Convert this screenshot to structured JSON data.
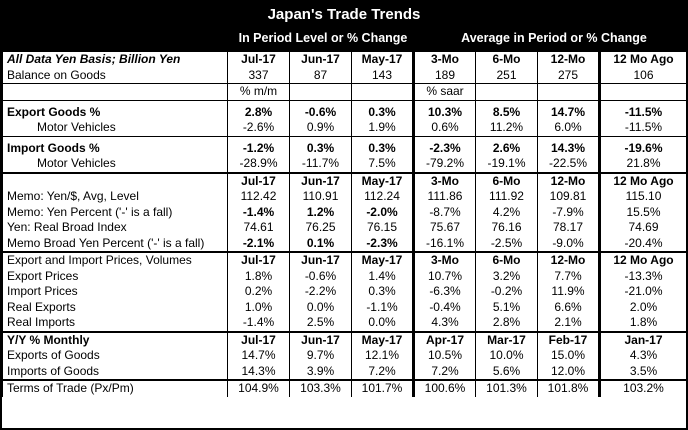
{
  "title": "Japan's Trade Trends",
  "header": {
    "left": "In Period Level or % Change",
    "right": "Average in Period or % Change"
  },
  "sections": [
    {
      "top": "top",
      "rows": [
        {
          "style": "hdr ital",
          "cells": [
            "All Data Yen Basis; Billion Yen",
            "Jul-17",
            "Jun-17",
            "May-17",
            "3-Mo",
            "6-Mo",
            "12-Mo",
            "12 Mo Ago"
          ]
        },
        {
          "style": "",
          "cells": [
            "Balance on Goods",
            "337",
            "87",
            "143",
            "189",
            "251",
            "275",
            "106"
          ]
        },
        {
          "style": "mid",
          "cells": [
            "",
            "% m/m",
            "",
            "",
            "% saar",
            "",
            "",
            ""
          ]
        }
      ]
    },
    {
      "top": "top",
      "rows": [
        {
          "style": "gap",
          "cells": [
            "",
            "",
            "",
            "",
            "",
            "",
            "",
            ""
          ]
        },
        {
          "style": "bold",
          "cells": [
            "Export Goods %",
            "2.8%",
            "-0.6%",
            "0.3%",
            "10.3%",
            "8.5%",
            "14.7%",
            "-11.5%"
          ]
        },
        {
          "style": "indent",
          "cells": [
            "Motor Vehicles",
            "-2.6%",
            "0.9%",
            "1.9%",
            "0.6%",
            "11.2%",
            "6.0%",
            "-11.5%"
          ]
        },
        {
          "style": "gap",
          "cells": [
            "",
            "",
            "",
            "",
            "",
            "",
            "",
            ""
          ]
        },
        {
          "style": "bold",
          "cells": [
            "Import Goods %",
            "-1.2%",
            "0.3%",
            "0.3%",
            "-2.3%",
            "2.6%",
            "14.3%",
            "-19.6%"
          ]
        },
        {
          "style": "indent",
          "cells": [
            "Motor Vehicles",
            "-28.9%",
            "-11.7%",
            "7.5%",
            "-79.2%",
            "-19.1%",
            "-22.5%",
            "21.8%"
          ]
        }
      ]
    },
    {
      "top": "top",
      "rows": [
        {
          "style": "hdr",
          "cells": [
            "",
            "Jul-17",
            "Jun-17",
            "May-17",
            "3-Mo",
            "6-Mo",
            "12-Mo",
            "12 Mo Ago"
          ]
        },
        {
          "style": "",
          "cells": [
            "Memo: Yen/$, Avg, Level",
            "112.42",
            "110.91",
            "112.24",
            "111.86",
            "111.92",
            "109.81",
            "115.10"
          ]
        },
        {
          "style": "bold-nums",
          "cells": [
            "Memo: Yen Percent ('-' is a fall)",
            "-1.4%",
            "1.2%",
            "-2.0%",
            "-8.7%",
            "4.2%",
            "-7.9%",
            "15.5%"
          ]
        },
        {
          "style": "",
          "cells": [
            "Yen: Real Broad Index",
            "74.61",
            "76.25",
            "76.15",
            "75.67",
            "76.16",
            "78.17",
            "74.69"
          ]
        },
        {
          "style": "bold-nums",
          "cells": [
            "Memo Broad Yen Percent ('-' is a fall)",
            "-2.1%",
            "0.1%",
            "-2.3%",
            "-16.1%",
            "-2.5%",
            "-9.0%",
            "-20.4%"
          ]
        }
      ]
    },
    {
      "top": "top",
      "rows": [
        {
          "style": "hdr-first-plain",
          "cells": [
            "Export and Import Prices, Volumes",
            "Jul-17",
            "Jun-17",
            "May-17",
            "3-Mo",
            "6-Mo",
            "12-Mo",
            "12 Mo Ago"
          ]
        },
        {
          "style": "",
          "cells": [
            "Export Prices",
            "1.8%",
            "-0.6%",
            "1.4%",
            "10.7%",
            "3.2%",
            "7.7%",
            "-13.3%"
          ]
        },
        {
          "style": "",
          "cells": [
            "Import Prices",
            "0.2%",
            "-2.2%",
            "0.3%",
            "-6.3%",
            "-0.2%",
            "11.9%",
            "-21.0%"
          ]
        },
        {
          "style": "",
          "cells": [
            "Real Exports",
            "1.0%",
            "0.0%",
            "-1.1%",
            "-0.4%",
            "5.1%",
            "6.6%",
            "2.0%"
          ]
        },
        {
          "style": "",
          "cells": [
            "Real Imports",
            "-1.4%",
            "2.5%",
            "0.0%",
            "4.3%",
            "2.8%",
            "2.1%",
            "1.8%"
          ]
        }
      ]
    },
    {
      "top": "top",
      "rows": [
        {
          "style": "hdr",
          "cells": [
            "Y/Y % Monthly",
            "Jul-17",
            "Jun-17",
            "May-17",
            "Apr-17",
            "Mar-17",
            "Feb-17",
            "Jan-17"
          ]
        },
        {
          "style": "",
          "cells": [
            "Exports of Goods",
            "14.7%",
            "9.7%",
            "12.1%",
            "10.5%",
            "10.0%",
            "15.0%",
            "4.3%"
          ]
        },
        {
          "style": "",
          "cells": [
            "Imports of Goods",
            "14.3%",
            "3.9%",
            "7.2%",
            "7.2%",
            "5.6%",
            "12.0%",
            "3.5%"
          ]
        }
      ]
    },
    {
      "top": "top",
      "rows": [
        {
          "style": "",
          "cells": [
            "Terms of Trade (Px/Pm)",
            "104.9%",
            "103.3%",
            "101.7%",
            "100.6%",
            "101.3%",
            "101.8%",
            "103.2%"
          ]
        }
      ]
    }
  ]
}
